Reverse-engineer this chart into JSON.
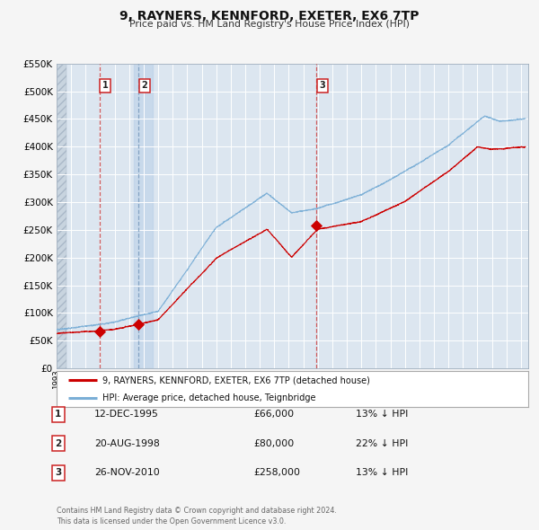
{
  "title": "9, RAYNERS, KENNFORD, EXETER, EX6 7TP",
  "subtitle": "Price paid vs. HM Land Registry's House Price Index (HPI)",
  "red_label": "9, RAYNERS, KENNFORD, EXETER, EX6 7TP (detached house)",
  "blue_label": "HPI: Average price, detached house, Teignbridge",
  "red_color": "#cc0000",
  "blue_color": "#7aaed6",
  "fig_bg": "#f5f5f5",
  "plot_bg": "#dce6f0",
  "grid_color": "#ffffff",
  "ylim": [
    0,
    550000
  ],
  "yticks": [
    0,
    50000,
    100000,
    150000,
    200000,
    250000,
    300000,
    350000,
    400000,
    450000,
    500000,
    550000
  ],
  "xlim_start": 1993.0,
  "xlim_end": 2025.5,
  "sale_dates": [
    1995.95,
    1998.64,
    2010.9
  ],
  "sale_prices": [
    66000,
    80000,
    258000
  ],
  "sale_labels": [
    "1",
    "2",
    "3"
  ],
  "vline1_x": 1995.95,
  "vline2_x": 1998.64,
  "vline3_x": 2010.9,
  "shade2_start": 1998.3,
  "shade2_end": 1999.6,
  "table_rows": [
    {
      "num": "1",
      "date": "12-DEC-1995",
      "price": "£66,000",
      "pct": "13% ↓ HPI"
    },
    {
      "num": "2",
      "date": "20-AUG-1998",
      "price": "£80,000",
      "pct": "22% ↓ HPI"
    },
    {
      "num": "3",
      "date": "26-NOV-2010",
      "price": "£258,000",
      "pct": "13% ↓ HPI"
    }
  ],
  "footer": "Contains HM Land Registry data © Crown copyright and database right 2024.\nThis data is licensed under the Open Government Licence v3.0."
}
